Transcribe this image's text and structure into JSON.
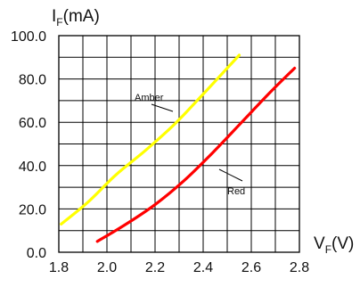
{
  "chart_data": {
    "type": "line",
    "title": "",
    "ylabel": {
      "main": "I",
      "sub": "F",
      "unit": "(mA)"
    },
    "xlabel": {
      "main": "V",
      "sub": "F",
      "unit": "(V)"
    },
    "xlim": [
      1.8,
      2.8
    ],
    "ylim": [
      0,
      100
    ],
    "x_ticks": [
      "1.8",
      "2.0",
      "2.2",
      "2.4",
      "2.6",
      "2.8"
    ],
    "y_ticks": [
      "0.0",
      "20.0",
      "40.0",
      "60.0",
      "80.0",
      "100.0"
    ],
    "grid": true,
    "series": [
      {
        "name": "Amber",
        "color": "#ffff00",
        "points": [
          [
            1.81,
            13
          ],
          [
            1.92,
            23
          ],
          [
            2.04,
            36
          ],
          [
            2.16,
            47
          ],
          [
            2.28,
            59
          ],
          [
            2.4,
            73
          ],
          [
            2.5,
            85
          ],
          [
            2.55,
            91
          ]
        ]
      },
      {
        "name": "Red",
        "color": "#ff0000",
        "points": [
          [
            1.96,
            5
          ],
          [
            2.08,
            13
          ],
          [
            2.2,
            22
          ],
          [
            2.32,
            33
          ],
          [
            2.44,
            46
          ],
          [
            2.56,
            60
          ],
          [
            2.68,
            74
          ],
          [
            2.78,
            85
          ]
        ]
      }
    ]
  }
}
